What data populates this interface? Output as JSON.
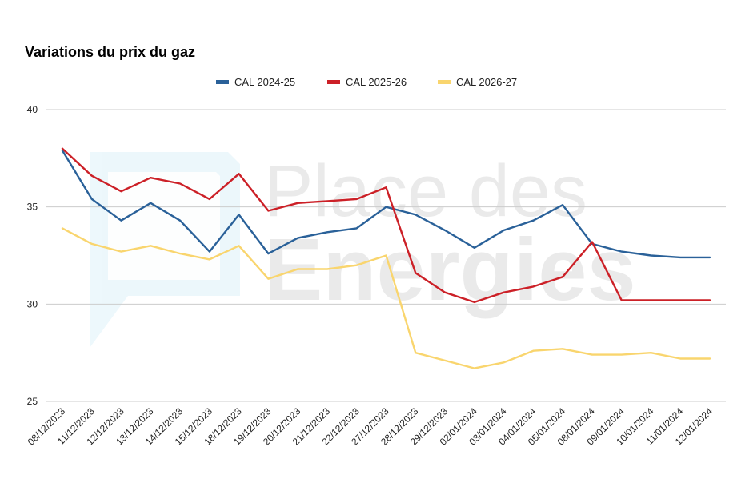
{
  "chart_data": {
    "type": "line",
    "title": "Variations du prix du gaz",
    "xlabel": "",
    "ylabel": "",
    "ylim": [
      25,
      40
    ],
    "yticks": [
      25,
      30,
      35,
      40
    ],
    "grid": true,
    "legend_position": "top-center",
    "categories": [
      "08/12/2023",
      "11/12/2023",
      "12/12/2023",
      "13/12/2023",
      "14/12/2023",
      "15/12/2023",
      "18/12/2023",
      "19/12/2023",
      "20/12/2023",
      "21/12/2023",
      "22/12/2023",
      "27/12/2023",
      "28/12/2023",
      "29/12/2023",
      "02/01/2024",
      "03/01/2024",
      "04/01/2024",
      "05/01/2024",
      "08/01/2024",
      "09/01/2024",
      "10/01/2024",
      "11/01/2024",
      "12/01/2024"
    ],
    "series": [
      {
        "name": "CAL 2024-25",
        "color": "#2a6199",
        "values": [
          37.9,
          35.4,
          34.3,
          35.2,
          34.3,
          32.7,
          34.6,
          32.6,
          33.4,
          33.7,
          33.9,
          35.0,
          34.6,
          33.8,
          32.9,
          33.8,
          34.3,
          35.1,
          33.1,
          32.7,
          32.5,
          32.4,
          32.4
        ]
      },
      {
        "name": "CAL 2025-26",
        "color": "#cc2027",
        "values": [
          38.0,
          36.6,
          35.8,
          36.5,
          36.2,
          35.4,
          36.7,
          34.8,
          35.2,
          35.3,
          35.4,
          36.0,
          31.6,
          30.6,
          30.1,
          30.6,
          30.9,
          31.4,
          33.2,
          30.2,
          30.2,
          30.2,
          30.2
        ]
      },
      {
        "name": "CAL 2026-27",
        "color": "#f9d56e",
        "values": [
          33.9,
          33.1,
          32.7,
          33.0,
          32.6,
          32.3,
          33.0,
          31.3,
          31.8,
          31.8,
          32.0,
          32.5,
          27.5,
          27.1,
          26.7,
          27.0,
          27.6,
          27.7,
          27.4,
          27.4,
          27.5,
          27.2,
          27.2
        ]
      }
    ]
  },
  "watermark": {
    "line1": "Place des",
    "line2": "Energies"
  }
}
